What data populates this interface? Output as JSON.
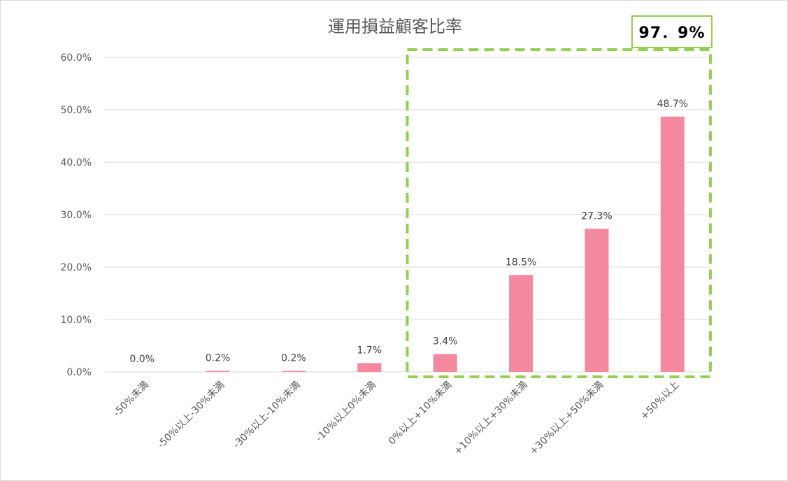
{
  "chart_data": {
    "type": "bar",
    "title": "運用損益顧客比率",
    "xlabel": "",
    "ylabel": "",
    "categories": [
      "-50%未満",
      "-50%以上-30%未満",
      "-30%以上-10%未満",
      "-10%以上0%未満",
      "0%以上+10%未満",
      "+10%以上+30%未満",
      "+30%以上+50%未満",
      "+50%以上"
    ],
    "values": [
      0.0,
      0.2,
      0.2,
      1.7,
      3.4,
      18.5,
      27.3,
      48.7
    ],
    "value_labels": [
      "0.0%",
      "0.2%",
      "0.2%",
      "1.7%",
      "3.4%",
      "18.5%",
      "27.3%",
      "48.7%"
    ],
    "ylim": [
      0,
      60
    ],
    "y_ticks": [
      0,
      10,
      20,
      30,
      40,
      50,
      60
    ],
    "y_tick_labels": [
      "0.0%",
      "10.0%",
      "20.0%",
      "30.0%",
      "40.0%",
      "50.0%",
      "60.0%"
    ],
    "grid": true,
    "legend": "none",
    "bar_color": "#f4889e",
    "annotation": {
      "text": "97．9%",
      "highlight_categories": [
        4,
        5,
        6,
        7
      ],
      "box_color": "#92d050",
      "style": "dashed"
    }
  }
}
